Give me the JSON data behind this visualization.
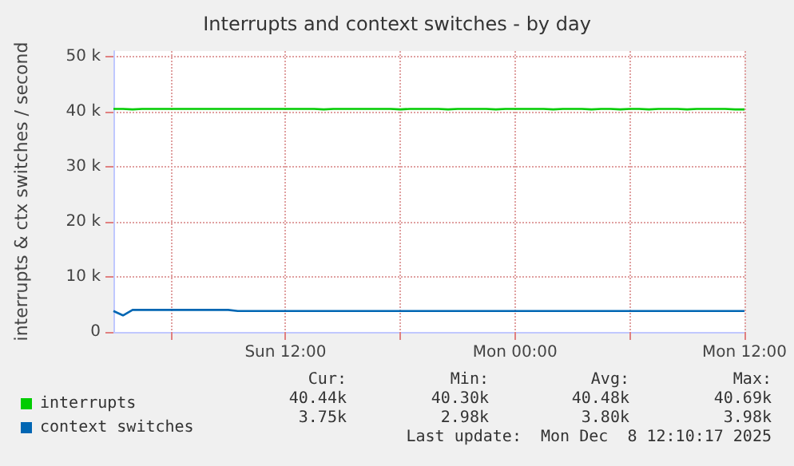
{
  "chart_data": {
    "type": "line",
    "title": "Interrupts and context switches - by day",
    "ylabel": "interrupts & ctx switches / second",
    "categories": [
      null,
      null,
      null,
      null,
      null,
      null,
      null,
      null,
      null,
      null,
      null,
      null,
      null,
      null,
      null,
      null,
      null,
      null,
      "Sun 12:00",
      null,
      null,
      null,
      null,
      null,
      null,
      null,
      null,
      null,
      null,
      null,
      null,
      null,
      null,
      null,
      null,
      null,
      null,
      null,
      null,
      null,
      null,
      null,
      "Mon 00:00",
      null,
      null,
      null,
      null,
      null,
      null,
      null,
      null,
      null,
      null,
      null,
      null,
      null,
      null,
      null,
      null,
      null,
      null,
      null,
      null,
      null,
      null,
      null,
      "Mon 12:00"
    ],
    "ylim": [
      0,
      51000
    ],
    "yticks": [
      0,
      {
        "value": 10000,
        "label": "10 k"
      },
      {
        "value": 20000,
        "label": "20 k"
      },
      {
        "value": 30000,
        "label": "30 k"
      },
      {
        "value": 40000,
        "label": "40 k"
      },
      {
        "value": 50000,
        "label": "50 k"
      }
    ],
    "grid": true,
    "legend": "bottom left",
    "marker": "none",
    "line_style": "solid",
    "series": [
      {
        "name": "interrupts",
        "color": "#00cc00",
        "values": [
          40500,
          40500,
          40400,
          40500,
          40500,
          40500,
          40500,
          40500,
          40500,
          40500,
          40500,
          40500,
          40500,
          40500,
          40500,
          40500,
          40500,
          40500,
          40500,
          40500,
          40500,
          40500,
          40400,
          40500,
          40500,
          40500,
          40500,
          40500,
          40500,
          40500,
          40400,
          40500,
          40500,
          40500,
          40500,
          40400,
          40500,
          40500,
          40500,
          40500,
          40400,
          40500,
          40500,
          40500,
          40500,
          40500,
          40400,
          40500,
          40500,
          40500,
          40400,
          40500,
          40500,
          40400,
          40500,
          40500,
          40400,
          40500,
          40500,
          40500,
          40400,
          40500,
          40500,
          40500,
          40500,
          40400,
          40400
        ]
      },
      {
        "name": "context switches",
        "color": "#0066b3",
        "values": [
          3800,
          3000,
          4000,
          4000,
          4000,
          4000,
          4000,
          4000,
          4000,
          4000,
          4000,
          4000,
          4000,
          3800,
          3800,
          3800,
          3800,
          3800,
          3800,
          3800,
          3800,
          3800,
          3800,
          3800,
          3800,
          3800,
          3800,
          3800,
          3800,
          3800,
          3800,
          3800,
          3800,
          3800,
          3800,
          3800,
          3800,
          3800,
          3800,
          3800,
          3800,
          3800,
          3800,
          3800,
          3800,
          3800,
          3800,
          3800,
          3800,
          3800,
          3800,
          3800,
          3800,
          3800,
          3800,
          3800,
          3800,
          3800,
          3800,
          3800,
          3800,
          3800,
          3800,
          3800,
          3800,
          3800,
          3800
        ]
      }
    ],
    "annotations": [
      "Cur:",
      "Min:",
      "Avg:",
      "Max:",
      "40.44k",
      "40.30k",
      "40.48k",
      "40.69k",
      "3.75k",
      "2.98k",
      "3.80k",
      "3.98k",
      "Last update:  Mon Dec  8 12:10:17 2025"
    ]
  }
}
